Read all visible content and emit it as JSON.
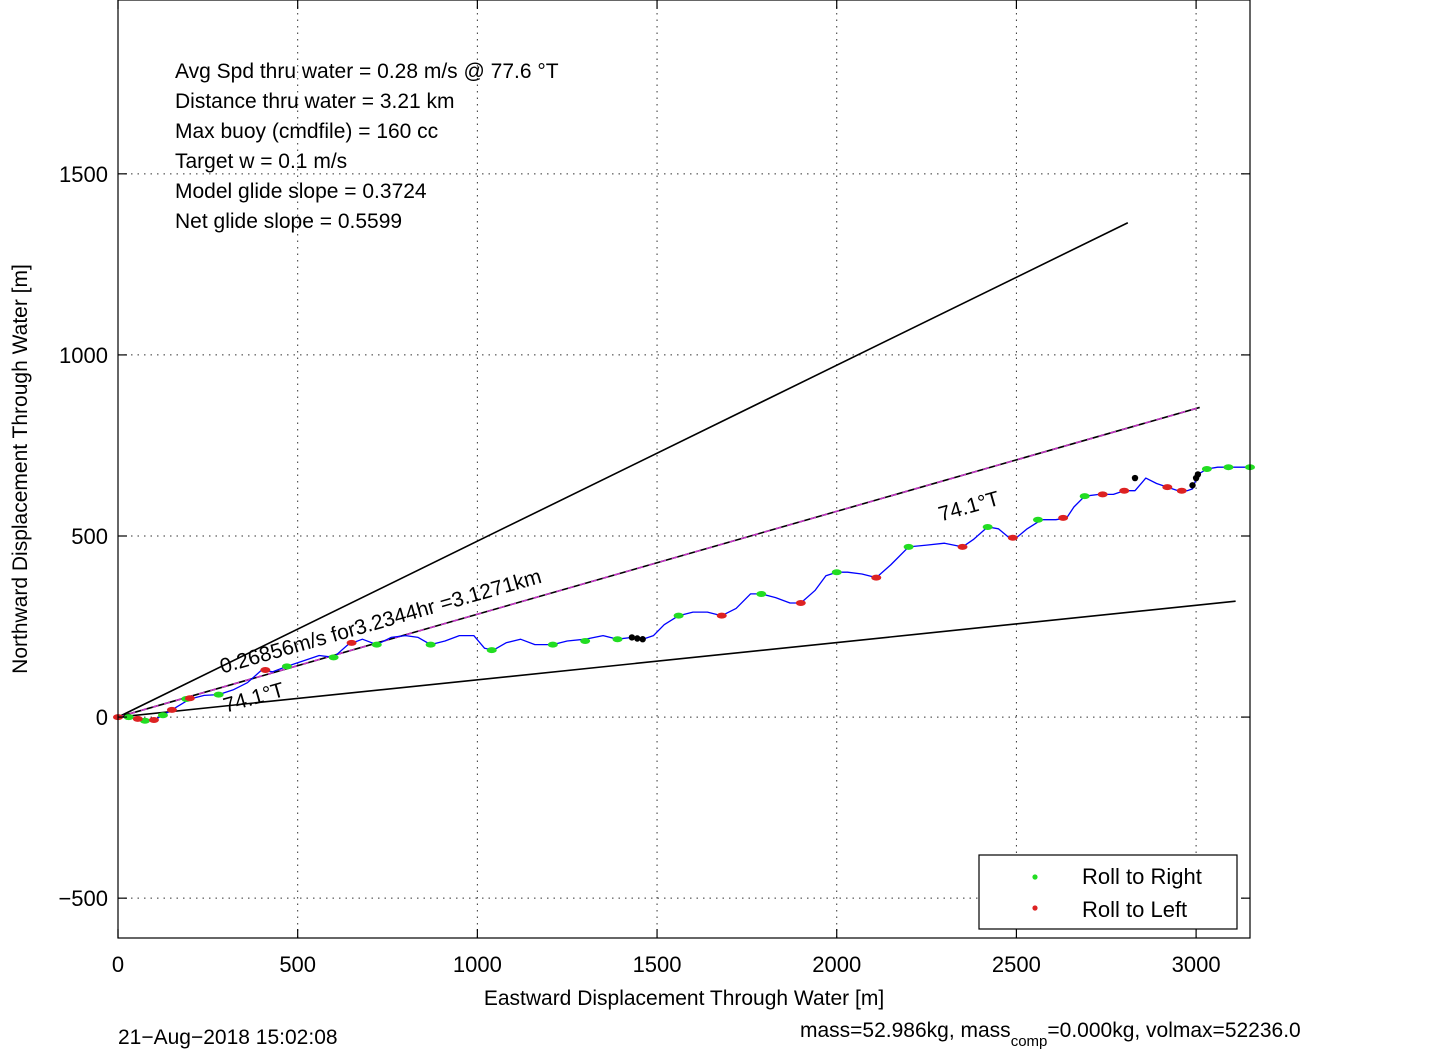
{
  "chart_data": {
    "type": "line",
    "xlabel": "Eastward Displacement Through Water [m]",
    "ylabel": "Northward Displacement Through Water [m]",
    "xlim": [
      0,
      3150
    ],
    "ylim": [
      -610,
      1980
    ],
    "x_ticks": [
      0,
      500,
      1000,
      1500,
      2000,
      2500,
      3000
    ],
    "y_ticks": [
      -500,
      0,
      500,
      1000,
      1500
    ],
    "grid": true,
    "legend_position": "bottom-right",
    "info_lines": [
      "Avg Spd thru water =  0.28 m/s @  77.6   °T",
      "Distance thru water =  3.21 km",
      "Max buoy (cmdfile) = 160 cc",
      "Target w = 0.1 m/s",
      "Model glide slope = 0.3724",
      "Net glide slope = 0.5599"
    ],
    "reference_lines": [
      {
        "x": [
          0,
          2810
        ],
        "y": [
          0,
          1365
        ],
        "color": "#000000"
      },
      {
        "x": [
          0,
          3010
        ],
        "y": [
          0,
          855
        ],
        "color": "#cc33cc"
      },
      {
        "x": [
          0,
          3110
        ],
        "y": [
          0,
          320
        ],
        "color": "#000000"
      }
    ],
    "annotations": [
      {
        "text": "0.26856m/s for3.2344hr =3.1271km",
        "x": 290,
        "y": 120,
        "angle_deg": -15.9
      },
      {
        "text": "74.1°T",
        "x": 2290,
        "y": 540,
        "angle_deg": -15.9
      },
      {
        "text": "74.1°T",
        "x": 300,
        "y": 12,
        "angle_deg": -15.9
      }
    ],
    "track": {
      "name": "",
      "color": "#0000ff",
      "x": [
        0,
        30,
        55,
        75,
        100,
        125,
        150,
        175,
        200,
        240,
        280,
        320,
        360,
        400,
        430,
        470,
        500,
        530,
        560,
        600,
        640,
        680,
        720,
        760,
        800,
        835,
        870,
        910,
        950,
        990,
        1020,
        1045,
        1080,
        1120,
        1160,
        1210,
        1250,
        1300,
        1350,
        1390,
        1430,
        1460,
        1490,
        1520,
        1560,
        1600,
        1640,
        1680,
        1720,
        1760,
        1790,
        1830,
        1870,
        1900,
        1940,
        1970,
        2000,
        2030,
        2070,
        2110,
        2150,
        2200,
        2250,
        2300,
        2350,
        2380,
        2420,
        2450,
        2480,
        2500,
        2530,
        2570,
        2610,
        2640,
        2660,
        2690,
        2730,
        2770,
        2800,
        2830,
        2860,
        2890,
        2920,
        2950,
        2975,
        2990,
        3005,
        3030,
        3060,
        3090,
        3120,
        3150
      ],
      "y": [
        0,
        0,
        -5,
        -10,
        -8,
        5,
        20,
        35,
        50,
        60,
        62,
        75,
        95,
        130,
        125,
        140,
        150,
        160,
        170,
        165,
        200,
        215,
        200,
        220,
        225,
        220,
        200,
        210,
        225,
        225,
        190,
        185,
        205,
        215,
        200,
        200,
        210,
        215,
        225,
        215,
        220,
        215,
        225,
        255,
        280,
        290,
        290,
        280,
        300,
        340,
        340,
        330,
        315,
        315,
        350,
        390,
        400,
        400,
        395,
        385,
        420,
        470,
        475,
        480,
        470,
        490,
        525,
        520,
        495,
        495,
        520,
        545,
        545,
        550,
        580,
        610,
        615,
        615,
        625,
        625,
        660,
        645,
        635,
        625,
        625,
        630,
        670,
        685,
        690,
        690,
        690,
        690
      ]
    },
    "roll_right": {
      "name": "Roll to Right",
      "color": "#22dd22",
      "x": [
        30,
        75,
        125,
        190,
        280,
        470,
        600,
        720,
        870,
        1040,
        1210,
        1300,
        1390,
        1560,
        1790,
        2000,
        2200,
        2420,
        2560,
        2690,
        3030,
        3090,
        3150
      ],
      "y": [
        0,
        -10,
        5,
        50,
        62,
        140,
        165,
        200,
        200,
        185,
        200,
        210,
        215,
        280,
        340,
        400,
        470,
        525,
        545,
        610,
        685,
        690,
        690
      ]
    },
    "roll_left": {
      "name": "Roll to Left",
      "color": "#dd2222",
      "x": [
        0,
        55,
        100,
        150,
        200,
        410,
        650,
        1680,
        1900,
        2110,
        2350,
        2490,
        2630,
        2740,
        2800,
        2920,
        2960
      ],
      "y": [
        0,
        -5,
        -8,
        20,
        52,
        130,
        205,
        280,
        315,
        385,
        470,
        495,
        550,
        615,
        625,
        635,
        625
      ]
    },
    "other_points": {
      "color": "#000000",
      "x": [
        1430,
        1445,
        1460,
        2830,
        2990,
        3000,
        3005
      ],
      "y": [
        220,
        217,
        215,
        660,
        640,
        660,
        670
      ]
    },
    "footer": {
      "timestamp": "21−Aug−2018 15:02:08",
      "mass_text_a": "mass=52.986kg, mass",
      "mass_sub": "comp",
      "mass_text_b": "=0.000kg, volmax=52236.0"
    }
  }
}
